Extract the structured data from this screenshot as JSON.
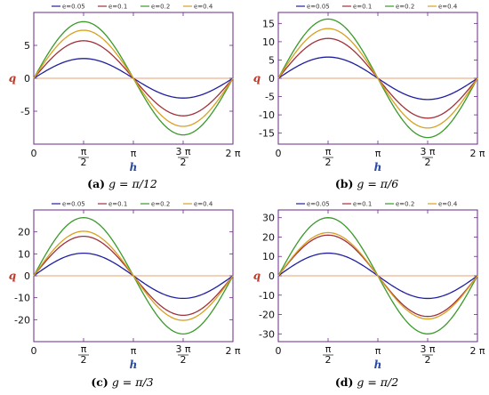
{
  "chart_data": [
    {
      "type": "line",
      "panel_label": "(a)",
      "caption": "g = π/12",
      "xlabel": "h",
      "ylabel": "q",
      "xlim": [
        0,
        6.2832
      ],
      "ylim": [
        -10,
        10
      ],
      "x_ticks": [
        {
          "value": 0,
          "label": "0"
        },
        {
          "value": 1.5708,
          "label_num": "π",
          "label_den": "2"
        },
        {
          "value": 3.1416,
          "label": "π"
        },
        {
          "value": 4.7124,
          "label_num": "3 π",
          "label_den": "2"
        },
        {
          "value": 6.2832,
          "label": "2 π"
        }
      ],
      "y_ticks": [
        {
          "value": -5,
          "label": "-5"
        },
        {
          "value": 0,
          "label": "0"
        },
        {
          "value": 5,
          "label": "5"
        }
      ],
      "legend": "top",
      "series": [
        {
          "name": "e=0.05",
          "color": "#1f1fa0",
          "amplitude": 3.0
        },
        {
          "name": "e=0.1",
          "color": "#a0303a",
          "amplitude": 5.7
        },
        {
          "name": "e=0.2",
          "color": "#3a9a2a",
          "amplitude": 8.6
        },
        {
          "name": "e=0.4",
          "color": "#d9a020",
          "amplitude": 7.3
        }
      ]
    },
    {
      "type": "line",
      "panel_label": "(b)",
      "caption": "g = π/6",
      "xlabel": "h",
      "ylabel": "q",
      "xlim": [
        0,
        6.2832
      ],
      "ylim": [
        -18,
        18
      ],
      "x_ticks": [
        {
          "value": 0,
          "label": "0"
        },
        {
          "value": 1.5708,
          "label_num": "π",
          "label_den": "2"
        },
        {
          "value": 3.1416,
          "label": "π"
        },
        {
          "value": 4.7124,
          "label_num": "3 π",
          "label_den": "2"
        },
        {
          "value": 6.2832,
          "label": "2 π"
        }
      ],
      "y_ticks": [
        {
          "value": -15,
          "label": "-15"
        },
        {
          "value": -10,
          "label": "-10"
        },
        {
          "value": -5,
          "label": "-5"
        },
        {
          "value": 0,
          "label": "0"
        },
        {
          "value": 5,
          "label": "5"
        },
        {
          "value": 10,
          "label": "10"
        },
        {
          "value": 15,
          "label": "15"
        }
      ],
      "legend": "top",
      "series": [
        {
          "name": "e=0.05",
          "color": "#1f1fa0",
          "amplitude": 5.8
        },
        {
          "name": "e=0.1",
          "color": "#a0303a",
          "amplitude": 10.9
        },
        {
          "name": "e=0.2",
          "color": "#3a9a2a",
          "amplitude": 16.2
        },
        {
          "name": "e=0.4",
          "color": "#d9a020",
          "amplitude": 13.6
        }
      ]
    },
    {
      "type": "line",
      "panel_label": "(c)",
      "caption": "g = π/3",
      "xlabel": "h",
      "ylabel": "q",
      "xlim": [
        0,
        6.2832
      ],
      "ylim": [
        -30,
        30
      ],
      "x_ticks": [
        {
          "value": 0,
          "label": "0"
        },
        {
          "value": 1.5708,
          "label_num": "π",
          "label_den": "2"
        },
        {
          "value": 3.1416,
          "label": "π"
        },
        {
          "value": 4.7124,
          "label_num": "3 π",
          "label_den": "2"
        },
        {
          "value": 6.2832,
          "label": "2 π"
        }
      ],
      "y_ticks": [
        {
          "value": -20,
          "label": "-20"
        },
        {
          "value": -10,
          "label": "-10"
        },
        {
          "value": 0,
          "label": "0"
        },
        {
          "value": 10,
          "label": "10"
        },
        {
          "value": 20,
          "label": "20"
        }
      ],
      "legend": "top",
      "series": [
        {
          "name": "e=0.05",
          "color": "#1f1fa0",
          "amplitude": 10.3
        },
        {
          "name": "e=0.1",
          "color": "#a0303a",
          "amplitude": 18.0
        },
        {
          "name": "e=0.2",
          "color": "#3a9a2a",
          "amplitude": 26.5
        },
        {
          "name": "e=0.4",
          "color": "#d9a020",
          "amplitude": 20.3
        }
      ]
    },
    {
      "type": "line",
      "panel_label": "(d)",
      "caption": "g = π/2",
      "xlabel": "h",
      "ylabel": "q",
      "xlim": [
        0,
        6.2832
      ],
      "ylim": [
        -34,
        34
      ],
      "x_ticks": [
        {
          "value": 0,
          "label": "0"
        },
        {
          "value": 1.5708,
          "label_num": "π",
          "label_den": "2"
        },
        {
          "value": 3.1416,
          "label": "π"
        },
        {
          "value": 4.7124,
          "label_num": "3 π",
          "label_den": "2"
        },
        {
          "value": 6.2832,
          "label": "2 π"
        }
      ],
      "y_ticks": [
        {
          "value": -30,
          "label": "-30"
        },
        {
          "value": -20,
          "label": "-20"
        },
        {
          "value": -10,
          "label": "-10"
        },
        {
          "value": 0,
          "label": "0"
        },
        {
          "value": 10,
          "label": "10"
        },
        {
          "value": 20,
          "label": "20"
        },
        {
          "value": 30,
          "label": "30"
        }
      ],
      "legend": "top",
      "series": [
        {
          "name": "e=0.05",
          "color": "#1f1fa0",
          "amplitude": 11.7
        },
        {
          "name": "e=0.1",
          "color": "#a0303a",
          "amplitude": 21.0
        },
        {
          "name": "e=0.2",
          "color": "#3a9a2a",
          "amplitude": 30.0
        },
        {
          "name": "e=0.4",
          "color": "#d9a020",
          "amplitude": 22.3
        }
      ]
    }
  ],
  "colors": {
    "frame": "#6a2a8a",
    "zero_line": "#e8a070",
    "ylabel": "#c0392b",
    "xlabel": "#2a4aa0",
    "tick_text": "#111111"
  }
}
